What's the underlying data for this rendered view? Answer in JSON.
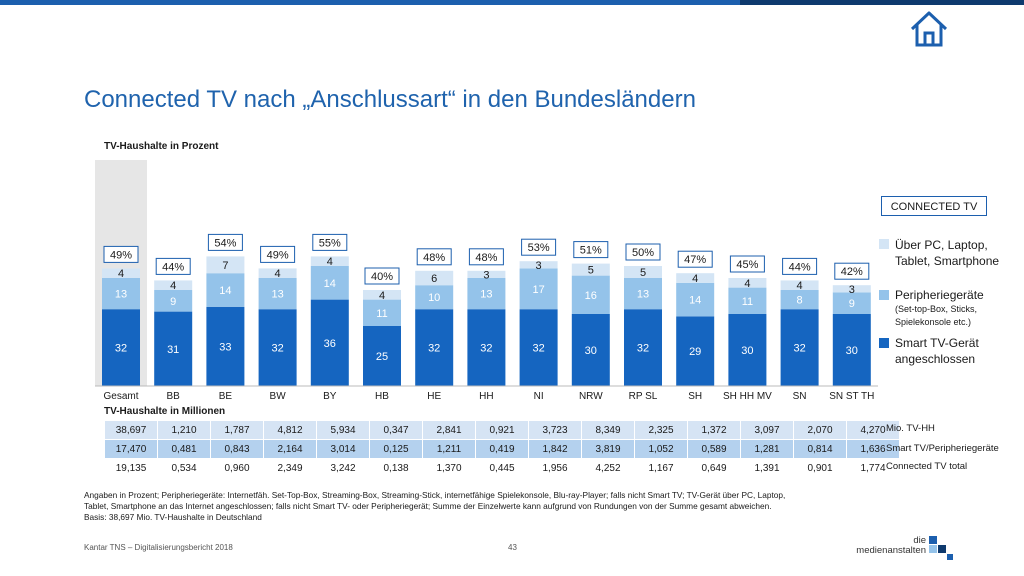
{
  "title": "Connected TV nach „Anschlussart“ in den Bundesländern",
  "subtitle": "TV-Haushalte in Prozent",
  "connected_badge": "CONNECTED TV",
  "legend": [
    {
      "label_line1": "Über PC, Laptop,",
      "label_line2": "Tablet, Smartphone",
      "color": "#d4e5f5"
    },
    {
      "label_line1": "Peripheriegeräte",
      "label_line2": "(Set-top-Box, Sticks,",
      "label_line3": "Spielekonsole etc.)",
      "color": "#94c3ea"
    },
    {
      "label_line1": "Smart TV-Gerät",
      "label_line2": "angeschlossen",
      "color": "#1565c0"
    }
  ],
  "chart_data": {
    "type": "bar",
    "stacked": true,
    "categories": [
      "Gesamt",
      "BB",
      "BE",
      "BW",
      "BY",
      "HB",
      "HE",
      "HH",
      "NI",
      "NRW",
      "RP SL",
      "SH",
      "SH HH MV",
      "SN",
      "SN ST TH"
    ],
    "series": [
      {
        "name": "Smart TV-Gerät angeschlossen",
        "color": "#1565c0",
        "values": [
          32,
          31,
          33,
          32,
          36,
          25,
          32,
          32,
          32,
          30,
          32,
          29,
          30,
          32,
          30
        ]
      },
      {
        "name": "Peripheriegeräte",
        "color": "#94c3ea",
        "values": [
          13,
          9,
          14,
          13,
          14,
          11,
          10,
          13,
          17,
          16,
          13,
          14,
          11,
          8,
          9
        ]
      },
      {
        "name": "Über PC, Laptop, Tablet, Smartphone",
        "color": "#d4e5f5",
        "values": [
          4,
          4,
          7,
          4,
          4,
          4,
          6,
          3,
          3,
          5,
          5,
          4,
          4,
          4,
          3
        ]
      }
    ],
    "totals": [
      "49%",
      "44%",
      "54%",
      "49%",
      "55%",
      "40%",
      "48%",
      "48%",
      "53%",
      "51%",
      "50%",
      "47%",
      "45%",
      "44%",
      "42%"
    ],
    "ylim": [
      0,
      60
    ]
  },
  "mio": {
    "title": "TV-Haushalte in Millionen",
    "rows": [
      {
        "label": "Mio. TV-HH",
        "values": [
          "38,697",
          "1,210",
          "1,787",
          "4,812",
          "5,934",
          "0,347",
          "2,841",
          "0,921",
          "3,723",
          "8,349",
          "2,325",
          "1,372",
          "3,097",
          "2,070",
          "4,270"
        ]
      },
      {
        "label": "Smart TV/Peripheriegeräte",
        "values": [
          "17,470",
          "0,481",
          "0,843",
          "2,164",
          "3,014",
          "0,125",
          "1,211",
          "0,419",
          "1,842",
          "3,819",
          "1,052",
          "0,589",
          "1,281",
          "0,814",
          "1,636"
        ]
      },
      {
        "label": "Connected TV total",
        "values": [
          "19,135",
          "0,534",
          "0,960",
          "2,349",
          "3,242",
          "0,138",
          "1,370",
          "0,445",
          "1,956",
          "4,252",
          "1,167",
          "0,649",
          "1,391",
          "0,901",
          "1,774"
        ]
      }
    ]
  },
  "footnote": {
    "line1": "Angaben in Prozent; Peripheriegeräte: Internetfäh. Set-Top-Box, Streaming-Box, Streaming-Stick, internetfähige Spielekonsole, Blu-ray-Player; falls nicht Smart TV; TV-Gerät über PC, Laptop,",
    "line2": "Tablet, Smartphone an das Internet angeschlossen; falls nicht Smart TV- oder Peripheriegerät; Summe der Einzelwerte kann aufgrund von Rundungen von der Summe gesamt abweichen.",
    "line3": "Basis: 38,697 Mio. TV-Haushalte in Deutschland"
  },
  "source": "Kantar TNS – Digitalisierungsbericht 2018",
  "page_number": "43",
  "logo": {
    "line1": "die",
    "line2": "medienanstalten"
  },
  "icons": {
    "home": "home-icon"
  }
}
